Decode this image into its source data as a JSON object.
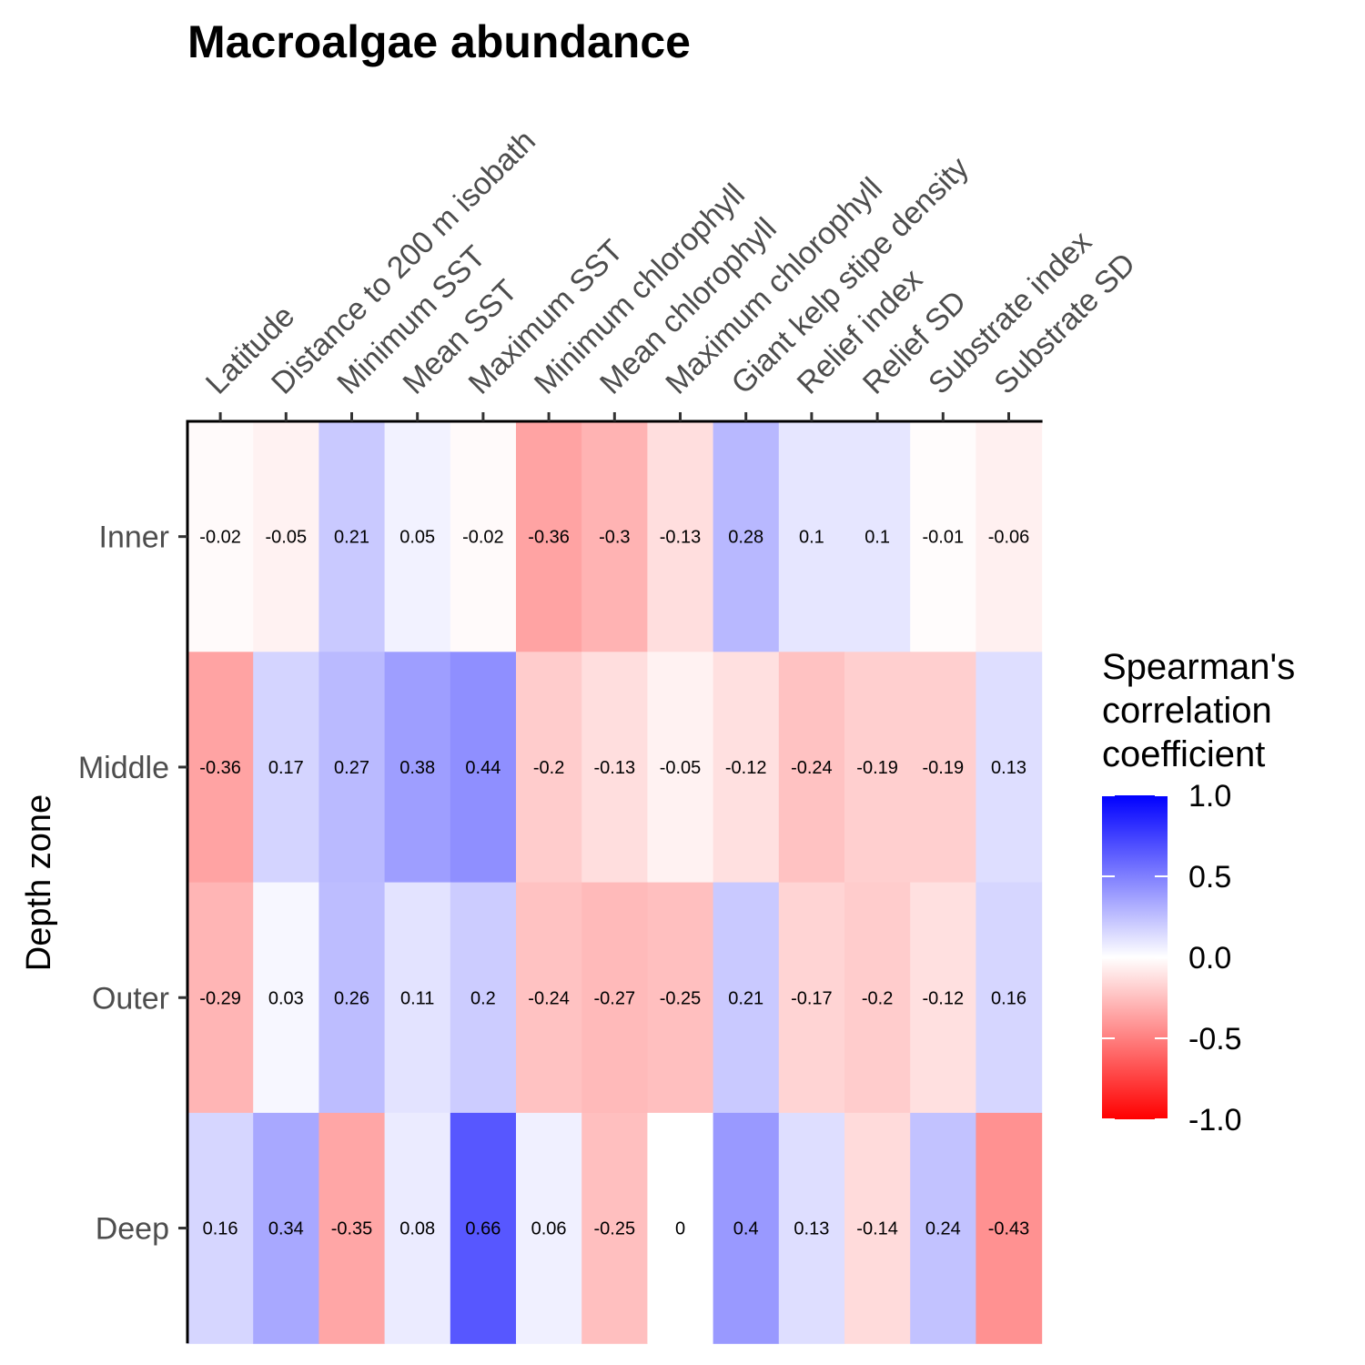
{
  "chart_data": {
    "type": "heatmap",
    "title": "Macroalgae  abundance",
    "xlabel": "",
    "ylabel": "Depth zone",
    "x_categories": [
      "Latitude",
      "Distance to 200 m isobath",
      "Minimum SST",
      "Mean SST",
      "Maximum SST",
      "Minimum chlorophyll",
      "Mean chlorophyll",
      "Maximum chlorophyll",
      "Giant kelp stipe density",
      "Relief index",
      "Relief SD",
      "Substrate index",
      "Substrate SD"
    ],
    "y_categories": [
      "Inner",
      "Middle",
      "Outer",
      "Deep"
    ],
    "values": [
      [
        -0.02,
        -0.05,
        0.21,
        0.05,
        -0.02,
        -0.36,
        -0.3,
        -0.13,
        0.28,
        0.1,
        0.1,
        -0.01,
        -0.06
      ],
      [
        -0.36,
        0.17,
        0.27,
        0.38,
        0.44,
        -0.2,
        -0.13,
        -0.05,
        -0.12,
        -0.24,
        -0.19,
        -0.19,
        0.13
      ],
      [
        -0.29,
        0.03,
        0.26,
        0.11,
        0.2,
        -0.24,
        -0.27,
        -0.25,
        0.21,
        -0.17,
        -0.2,
        -0.12,
        0.16
      ],
      [
        0.16,
        0.34,
        -0.35,
        0.08,
        0.66,
        0.06,
        -0.25,
        0,
        0.4,
        0.13,
        -0.14,
        0.24,
        -0.43
      ]
    ],
    "labels": [
      [
        "-0.02",
        "-0.05",
        "0.21",
        "0.05",
        "-0.02",
        "-0.36",
        "-0.3",
        "-0.13",
        "0.28",
        "0.1",
        "0.1",
        "-0.01",
        "-0.06"
      ],
      [
        "-0.36",
        "0.17",
        "0.27",
        "0.38",
        "0.44",
        "-0.2",
        "-0.13",
        "-0.05",
        "-0.12",
        "-0.24",
        "-0.19",
        "-0.19",
        "0.13"
      ],
      [
        "-0.29",
        "0.03",
        "0.26",
        "0.11",
        "0.2",
        "-0.24",
        "-0.27",
        "-0.25",
        "0.21",
        "-0.17",
        "-0.2",
        "-0.12",
        "0.16"
      ],
      [
        "0.16",
        "0.34",
        "-0.35",
        "0.08",
        "0.66",
        "0.06",
        "-0.25",
        "0",
        "0.4",
        "0.13",
        "-0.14",
        "0.24",
        "-0.43"
      ]
    ],
    "x_axis_position": "top",
    "color_scale": {
      "low": "#ff0000",
      "mid": "#ffffff",
      "high": "#0000ff",
      "limits": [
        -1,
        1
      ]
    },
    "legend": {
      "title_lines": [
        "Spearman's",
        "correlation",
        "coefficient"
      ],
      "breaks": [
        1.0,
        0.5,
        0.0,
        -0.5,
        -1.0
      ],
      "break_labels": [
        "1.0",
        "0.5",
        "0.0",
        "-0.5",
        "-1.0"
      ],
      "position": "right"
    },
    "grid": false
  }
}
